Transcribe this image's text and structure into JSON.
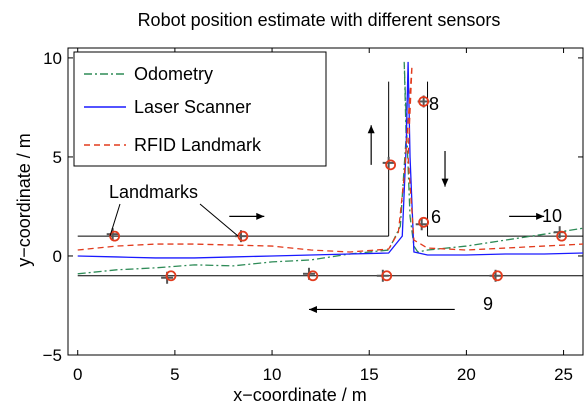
{
  "chart_data": {
    "type": "line",
    "title": "Robot position estimate with different sensors",
    "xlabel": "x−coordinate / m",
    "ylabel": "y−coordinate / m",
    "xlim": [
      -0.5,
      26
    ],
    "ylim": [
      -5,
      10.5
    ],
    "xticks": [
      0,
      5,
      10,
      15,
      20,
      25
    ],
    "yticks": [
      -5,
      0,
      5,
      10
    ],
    "xtick_labels": [
      "0",
      "5",
      "10",
      "15",
      "20",
      "25"
    ],
    "ytick_labels": [
      "−5",
      "0",
      "5",
      "10"
    ],
    "grid": false,
    "legend_position": "top-left",
    "series": [
      {
        "name": "Odometry",
        "color": "#2e8b57",
        "style": "dashdot",
        "x": [
          0,
          2,
          4,
          6,
          8,
          10,
          12,
          14,
          16,
          16.6,
          16.9,
          16.8,
          16.9,
          17.1,
          17.3,
          17.5,
          18,
          20,
          22,
          24,
          26
        ],
        "y": [
          -0.9,
          -0.7,
          -0.6,
          -0.45,
          -0.5,
          -0.3,
          -0.2,
          0.1,
          0.3,
          1.5,
          6,
          9.8,
          7,
          2,
          0.5,
          0.2,
          0.3,
          0.5,
          0.8,
          1.1,
          1.4
        ]
      },
      {
        "name": "Laser Scanner",
        "color": "#1a1aff",
        "style": "solid",
        "x": [
          0,
          2,
          4,
          6,
          8,
          10,
          12,
          14,
          16,
          16.7,
          16.9,
          17.0,
          17.1,
          17.3,
          18,
          20,
          22,
          24,
          26
        ],
        "y": [
          0.0,
          -0.05,
          -0.1,
          -0.1,
          -0.05,
          0.0,
          0.05,
          0.1,
          0.15,
          1.0,
          5.5,
          9.8,
          5,
          0.2,
          0.05,
          0.05,
          0.1,
          0.1,
          0.15
        ]
      },
      {
        "name": "RFID Landmark",
        "color": "#e23b1d",
        "style": "dashed",
        "x": [
          0,
          2,
          4,
          6,
          8,
          10,
          12,
          14,
          16,
          16.5,
          16.8,
          17.2,
          17.0,
          17.3,
          18,
          20,
          22,
          24,
          26
        ],
        "y": [
          0.3,
          0.5,
          0.6,
          0.6,
          0.55,
          0.5,
          0.3,
          0.2,
          0.35,
          1.2,
          4,
          9.6,
          5,
          0.8,
          0.4,
          0.3,
          0.4,
          0.5,
          0.6
        ]
      }
    ],
    "walls": [
      {
        "x": [
          0,
          16
        ],
        "y": [
          1,
          1
        ]
      },
      {
        "x": [
          0,
          26
        ],
        "y": [
          -1,
          -1
        ]
      },
      {
        "x": [
          16,
          16
        ],
        "y": [
          1,
          8.8
        ]
      },
      {
        "x": [
          18,
          18
        ],
        "y": [
          1,
          8.8
        ]
      },
      {
        "x": [
          18,
          26
        ],
        "y": [
          1,
          1
        ]
      }
    ],
    "landmarks_true": [
      {
        "x": 1.8,
        "y": 1.1
      },
      {
        "x": 8.4,
        "y": 1.0
      },
      {
        "x": 4.6,
        "y": -1.1
      },
      {
        "x": 11.9,
        "y": -0.9
      },
      {
        "x": 15.7,
        "y": -1.0
      },
      {
        "x": 16.0,
        "y": 4.7
      },
      {
        "x": 17.7,
        "y": 1.6
      },
      {
        "x": 17.8,
        "y": 7.8
      },
      {
        "x": 21.5,
        "y": -1.0
      },
      {
        "x": 24.8,
        "y": 1.2
      }
    ],
    "landmarks_est": [
      {
        "x": 1.9,
        "y": 1.0
      },
      {
        "x": 8.5,
        "y": 1.0
      },
      {
        "x": 4.8,
        "y": -1.0
      },
      {
        "x": 12.1,
        "y": -1.0
      },
      {
        "x": 15.9,
        "y": -1.0
      },
      {
        "x": 16.1,
        "y": 4.6
      },
      {
        "x": 17.8,
        "y": 1.7
      },
      {
        "x": 17.8,
        "y": 7.8
      },
      {
        "x": 21.6,
        "y": -1.0
      },
      {
        "x": 24.9,
        "y": 1.0
      }
    ],
    "annotations": {
      "landmarks": "Landmarks",
      "label_8": "8",
      "label_6": "6",
      "label_10": "10",
      "label_9": "9"
    }
  }
}
